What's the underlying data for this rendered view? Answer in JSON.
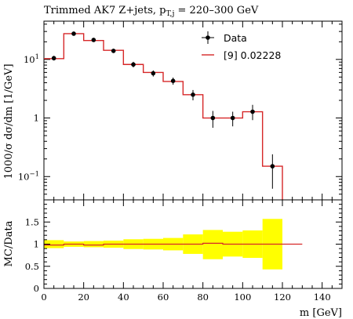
{
  "chart_data": [
    {
      "panel": "main",
      "type": "line",
      "title": "Trimmed AK7 Z+jets, p",
      "title_sub": "T,j",
      "title_tail": " = 220–300 GeV",
      "ylabel": "1000/σ dσ/dm [1/GeV]",
      "yscale": "log",
      "ylim": [
        0.04,
        45
      ],
      "xlim": [
        0,
        150
      ],
      "y_ticks": [
        {
          "value": 0.1,
          "label": "10",
          "exp": "−1"
        },
        {
          "value": 1,
          "label": "1",
          "exp": ""
        },
        {
          "value": 10,
          "label": "10",
          "exp": "1"
        }
      ],
      "legend": {
        "position": "top-right",
        "entries": [
          {
            "label": "Data",
            "style": "marker"
          },
          {
            "label": "[9] 0.02228",
            "style": "line"
          }
        ]
      },
      "series": [
        {
          "name": "Data",
          "x": [
            5,
            15,
            25,
            35,
            45,
            55,
            65,
            75,
            85,
            95,
            105,
            115
          ],
          "y": [
            10.5,
            27.5,
            21.5,
            14.0,
            8.2,
            5.8,
            4.3,
            2.5,
            1.0,
            1.0,
            1.28,
            0.15
          ],
          "y_low": [
            9.6,
            26.0,
            20.0,
            12.9,
            7.3,
            5.1,
            3.7,
            2.0,
            0.68,
            0.72,
            0.92,
            0.062
          ],
          "y_high": [
            11.5,
            29.0,
            23.0,
            15.2,
            9.1,
            6.5,
            4.9,
            3.0,
            1.32,
            1.28,
            1.68,
            0.24
          ]
        },
        {
          "name": "[9] 0.02228",
          "color": "#d62728",
          "bin_edges": [
            0,
            10,
            20,
            30,
            40,
            50,
            60,
            70,
            80,
            90,
            100,
            110,
            120
          ],
          "values": [
            10.3,
            27.5,
            21.0,
            14.3,
            8.2,
            6.0,
            4.2,
            2.5,
            1.0,
            1.0,
            1.28,
            0.15
          ]
        }
      ]
    },
    {
      "panel": "ratio",
      "type": "area",
      "xlabel": "m [GeV]",
      "ylabel": "MC/Data",
      "xlim": [
        0,
        150
      ],
      "ylim": [
        0,
        2
      ],
      "x_ticks": [
        0,
        20,
        40,
        60,
        80,
        100,
        120,
        140
      ],
      "y_ticks": [
        0,
        0.5,
        1,
        1.5
      ],
      "y_tick_labels": [
        "0",
        "0.5",
        "1",
        "1.5"
      ],
      "band_color": "#ffff00",
      "line_color": "#d62728",
      "bins": [
        {
          "lo": 0,
          "hi": 10,
          "band_low": 0.91,
          "band_high": 1.09,
          "ratio": 0.98
        },
        {
          "lo": 10,
          "hi": 20,
          "band_low": 0.94,
          "band_high": 1.06,
          "ratio": 1.0
        },
        {
          "lo": 20,
          "hi": 30,
          "band_low": 0.93,
          "band_high": 1.07,
          "ratio": 0.98
        },
        {
          "lo": 30,
          "hi": 40,
          "band_low": 0.92,
          "band_high": 1.08,
          "ratio": 1.0
        },
        {
          "lo": 40,
          "hi": 50,
          "band_low": 0.89,
          "band_high": 1.11,
          "ratio": 1.0
        },
        {
          "lo": 50,
          "hi": 60,
          "band_low": 0.88,
          "band_high": 1.12,
          "ratio": 1.0
        },
        {
          "lo": 60,
          "hi": 70,
          "band_low": 0.86,
          "band_high": 1.14,
          "ratio": 1.0
        },
        {
          "lo": 70,
          "hi": 80,
          "band_low": 0.78,
          "band_high": 1.22,
          "ratio": 1.0
        },
        {
          "lo": 80,
          "hi": 90,
          "band_low": 0.66,
          "band_high": 1.32,
          "ratio": 1.02
        },
        {
          "lo": 90,
          "hi": 100,
          "band_low": 0.72,
          "band_high": 1.28,
          "ratio": 1.0
        },
        {
          "lo": 100,
          "hi": 110,
          "band_low": 0.69,
          "band_high": 1.31,
          "ratio": 1.0
        },
        {
          "lo": 110,
          "hi": 120,
          "band_low": 0.43,
          "band_high": 1.57,
          "ratio": 1.0
        },
        {
          "lo": 120,
          "hi": 130,
          "band_low": 1.0,
          "band_high": 1.0,
          "ratio": 1.0
        }
      ]
    }
  ]
}
